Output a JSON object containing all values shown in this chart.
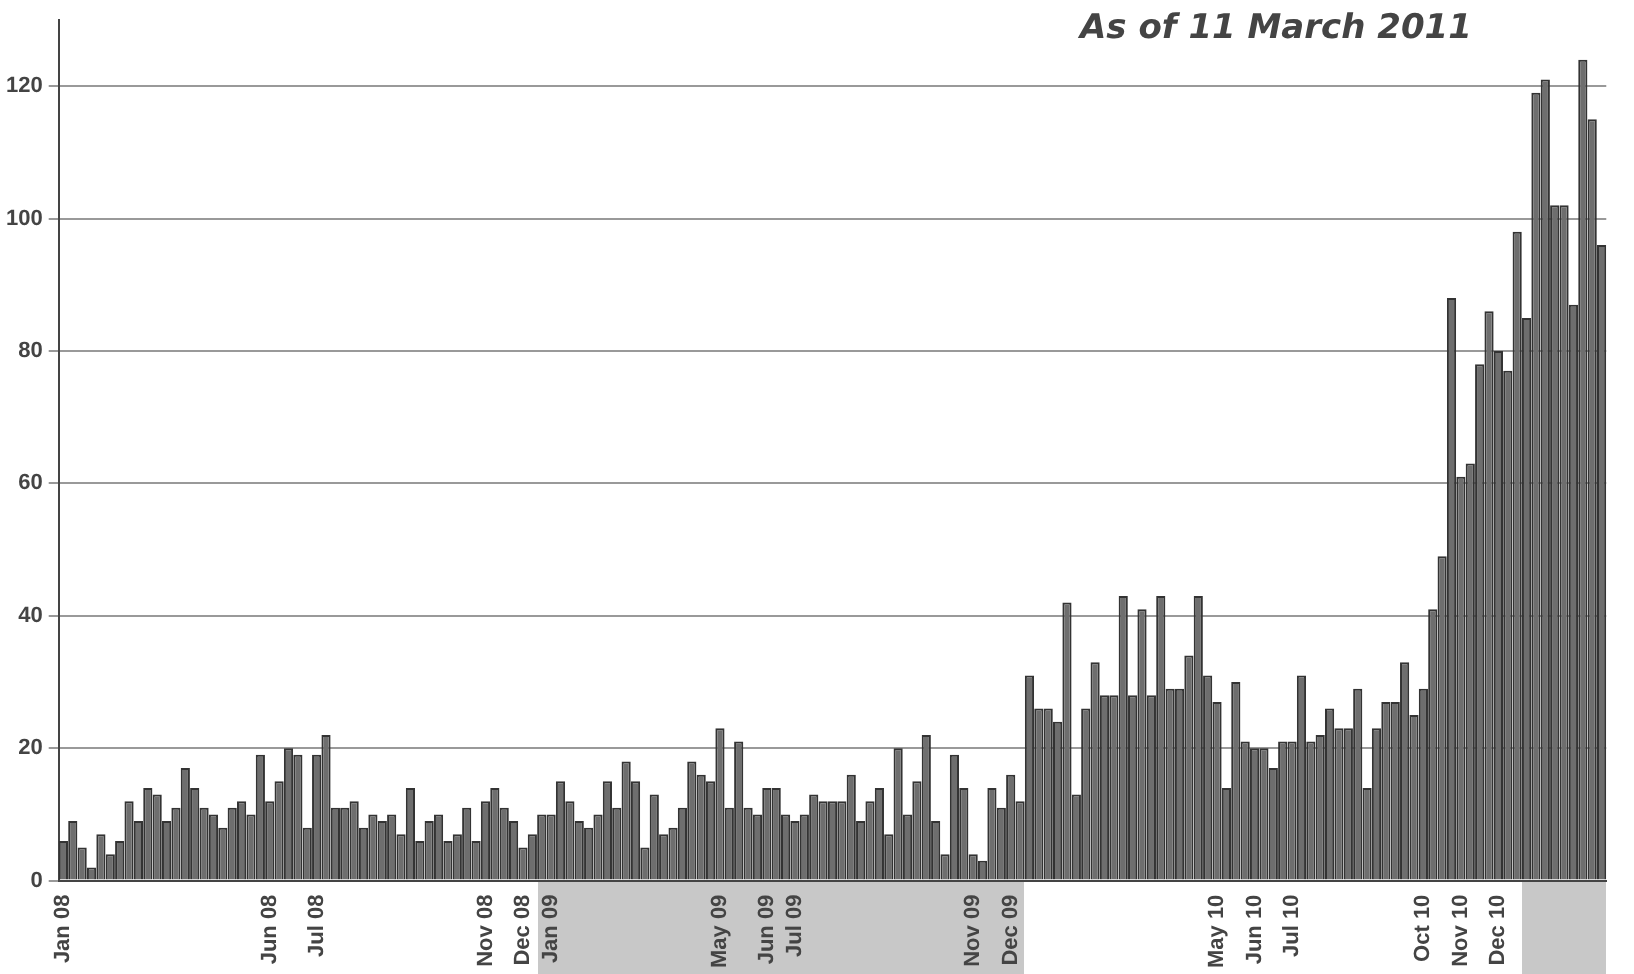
{
  "chart_data": {
    "type": "bar",
    "categories": [
      "Jan 08",
      null,
      null,
      null,
      null,
      null,
      null,
      null,
      null,
      null,
      null,
      null,
      null,
      null,
      null,
      null,
      null,
      null,
      null,
      null,
      null,
      null,
      "Jun 08",
      null,
      null,
      null,
      null,
      "Jul 08",
      null,
      null,
      null,
      null,
      null,
      null,
      null,
      null,
      null,
      null,
      null,
      null,
      null,
      null,
      null,
      null,
      null,
      "Nov 08",
      null,
      null,
      null,
      "Dec 08",
      null,
      null,
      "Jan 09",
      null,
      null,
      null,
      null,
      null,
      null,
      null,
      null,
      null,
      null,
      null,
      null,
      null,
      null,
      null,
      null,
      null,
      "May 09",
      null,
      null,
      null,
      null,
      "Jun 09",
      null,
      null,
      "Jul 09",
      null,
      null,
      null,
      null,
      null,
      null,
      null,
      null,
      null,
      null,
      null,
      null,
      null,
      null,
      null,
      null,
      null,
      null,
      "Nov 09",
      null,
      null,
      null,
      "Dec 09",
      null,
      null,
      null,
      null,
      null,
      null,
      null,
      null,
      null,
      null,
      null,
      null,
      null,
      null,
      null,
      null,
      null,
      null,
      null,
      null,
      null,
      "May 10",
      null,
      null,
      null,
      "Jun 10",
      null,
      null,
      null,
      "Jul 10",
      null,
      null,
      null,
      null,
      null,
      null,
      null,
      null,
      null,
      null,
      null,
      null,
      null,
      "Oct 10",
      null,
      null,
      null,
      "Nov 10",
      null,
      null,
      null,
      "Dec 10",
      null,
      null,
      null,
      null,
      null,
      null,
      null,
      null,
      null,
      null,
      null
    ],
    "values": [
      6,
      9,
      5,
      2,
      7,
      4,
      6,
      12,
      9,
      14,
      13,
      9,
      11,
      17,
      14,
      11,
      10,
      8,
      11,
      12,
      10,
      19,
      12,
      15,
      20,
      19,
      8,
      19,
      22,
      11,
      11,
      12,
      8,
      10,
      9,
      10,
      7,
      14,
      6,
      9,
      10,
      6,
      7,
      11,
      6,
      12,
      14,
      11,
      9,
      5,
      7,
      10,
      10,
      15,
      12,
      9,
      8,
      10,
      15,
      11,
      18,
      15,
      5,
      13,
      7,
      8,
      11,
      18,
      16,
      15,
      23,
      11,
      21,
      11,
      10,
      14,
      14,
      10,
      9,
      10,
      13,
      12,
      12,
      12,
      16,
      9,
      12,
      14,
      7,
      20,
      10,
      15,
      22,
      9,
      4,
      19,
      14,
      4,
      3,
      14,
      11,
      16,
      12,
      31,
      26,
      26,
      24,
      42,
      13,
      26,
      33,
      28,
      28,
      43,
      28,
      41,
      28,
      43,
      29,
      29,
      34,
      43,
      31,
      27,
      14,
      30,
      21,
      20,
      20,
      17,
      21,
      21,
      31,
      21,
      22,
      26,
      23,
      23,
      29,
      14,
      23,
      27,
      27,
      33,
      25,
      29,
      41,
      49,
      88,
      61,
      63,
      78,
      86,
      80,
      77,
      98,
      85,
      119,
      121,
      102,
      102,
      87,
      124,
      115,
      96
    ],
    "color": "#6e6e6e",
    "ylim": [
      0,
      130
    ],
    "yticks": [
      0,
      20,
      40,
      60,
      80,
      100,
      120
    ],
    "grid": "y",
    "annotations": [
      "As of 11 March 2011"
    ]
  }
}
